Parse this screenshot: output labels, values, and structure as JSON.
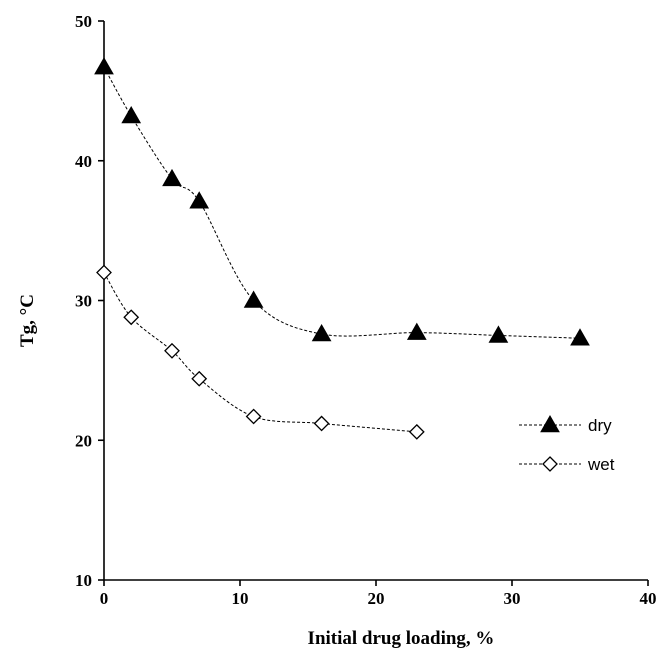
{
  "chart_data": {
    "type": "scatter",
    "xlabel": "Initial drug loading, %",
    "ylabel": "Tg, °C",
    "xlim": [
      0,
      40
    ],
    "ylim": [
      10,
      50
    ],
    "xticks": [
      "0",
      "10",
      "20",
      "30",
      "40"
    ],
    "yticks": [
      "10",
      "20",
      "30",
      "40",
      "50"
    ],
    "grid": false,
    "legend_position": "right",
    "line_style": "smoothed dashed",
    "series": [
      {
        "name": "dry",
        "marker": "filled-triangle",
        "color": "#000000",
        "x": [
          0,
          2,
          5,
          7,
          11,
          16,
          23,
          29,
          35
        ],
        "y": [
          46.7,
          43.2,
          38.7,
          37.1,
          30.0,
          27.6,
          27.7,
          27.5,
          27.3
        ]
      },
      {
        "name": "wet",
        "marker": "open-diamond",
        "color": "#000000",
        "x": [
          0,
          2,
          5,
          7,
          11,
          16,
          23
        ],
        "y": [
          32.0,
          28.8,
          26.4,
          24.4,
          21.7,
          21.2,
          20.6
        ]
      }
    ]
  }
}
